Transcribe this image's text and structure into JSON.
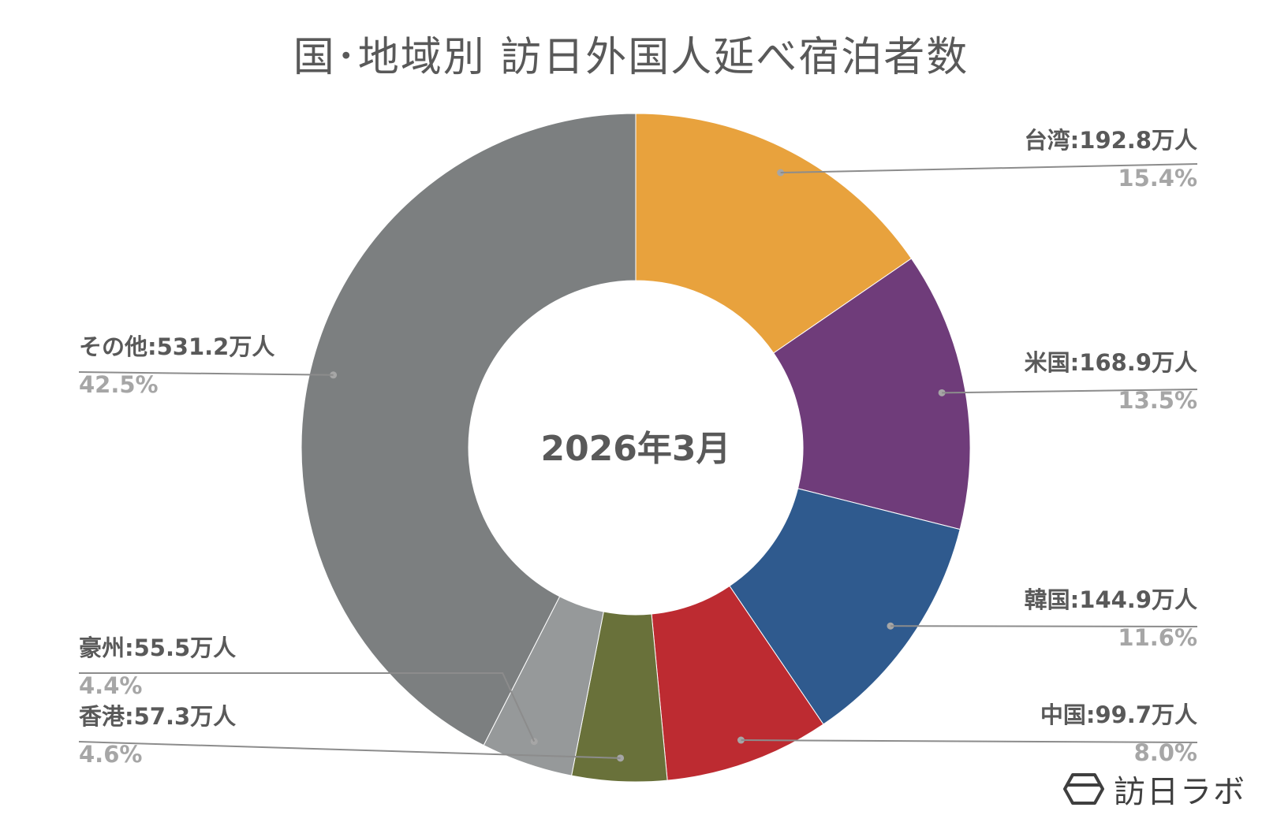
{
  "title": "国･地域別 訪日外国人延べ宿泊者数",
  "brand": {
    "name": "訪日ラボ"
  },
  "chart_data": {
    "type": "pie",
    "style": "donut",
    "center_label": "2026年3月",
    "unit": "万人",
    "slices": [
      {
        "name": "台湾",
        "value": 192.8,
        "percent": "15.4%",
        "color": "#E8A23D",
        "label": "台湾:192.8万人"
      },
      {
        "name": "米国",
        "value": 168.9,
        "percent": "13.5%",
        "color": "#6F3C7A",
        "label": "米国:168.9万人"
      },
      {
        "name": "韓国",
        "value": 144.9,
        "percent": "11.6%",
        "color": "#2F5A8E",
        "label": "韓国:144.9万人"
      },
      {
        "name": "中国",
        "value": 99.7,
        "percent": "8.0%",
        "color": "#BD2B31",
        "label": "中国:99.7万人"
      },
      {
        "name": "香港",
        "value": 57.3,
        "percent": "4.6%",
        "color": "#69713A",
        "label": "香港:57.3万人"
      },
      {
        "name": "豪州",
        "value": 55.5,
        "percent": "4.4%",
        "color": "#96999A",
        "label": "豪州:55.5万人"
      },
      {
        "name": "その他",
        "value": 531.2,
        "percent": "42.5%",
        "color": "#7C7F80",
        "label": "その他:531.2万人"
      }
    ]
  }
}
